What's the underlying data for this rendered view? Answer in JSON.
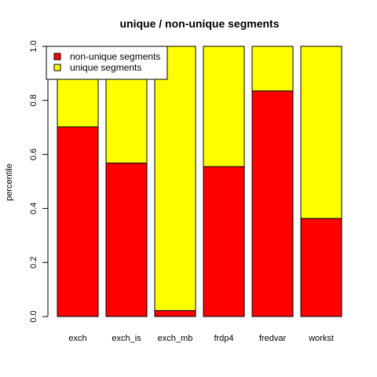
{
  "chart_data": {
    "type": "bar",
    "stacked": true,
    "title": "unique / non-unique segments",
    "xlabel": "",
    "ylabel": "percentile",
    "ylim": [
      0,
      1
    ],
    "yticks": [
      "0.0",
      "0.2",
      "0.4",
      "0.6",
      "0.8",
      "1.0"
    ],
    "categories": [
      "exch",
      "exch_is",
      "exch_mb",
      "frdp4",
      "fredvar",
      "workst"
    ],
    "series": [
      {
        "name": "non-unique segments",
        "color": "#ff0000",
        "values": [
          0.702,
          0.568,
          0.022,
          0.555,
          0.835,
          0.363
        ]
      },
      {
        "name": "unique segments",
        "color": "#ffff00",
        "values": [
          0.298,
          0.432,
          0.978,
          0.445,
          0.165,
          0.637
        ]
      }
    ],
    "legend": {
      "position": "top-left"
    },
    "grid": false
  }
}
